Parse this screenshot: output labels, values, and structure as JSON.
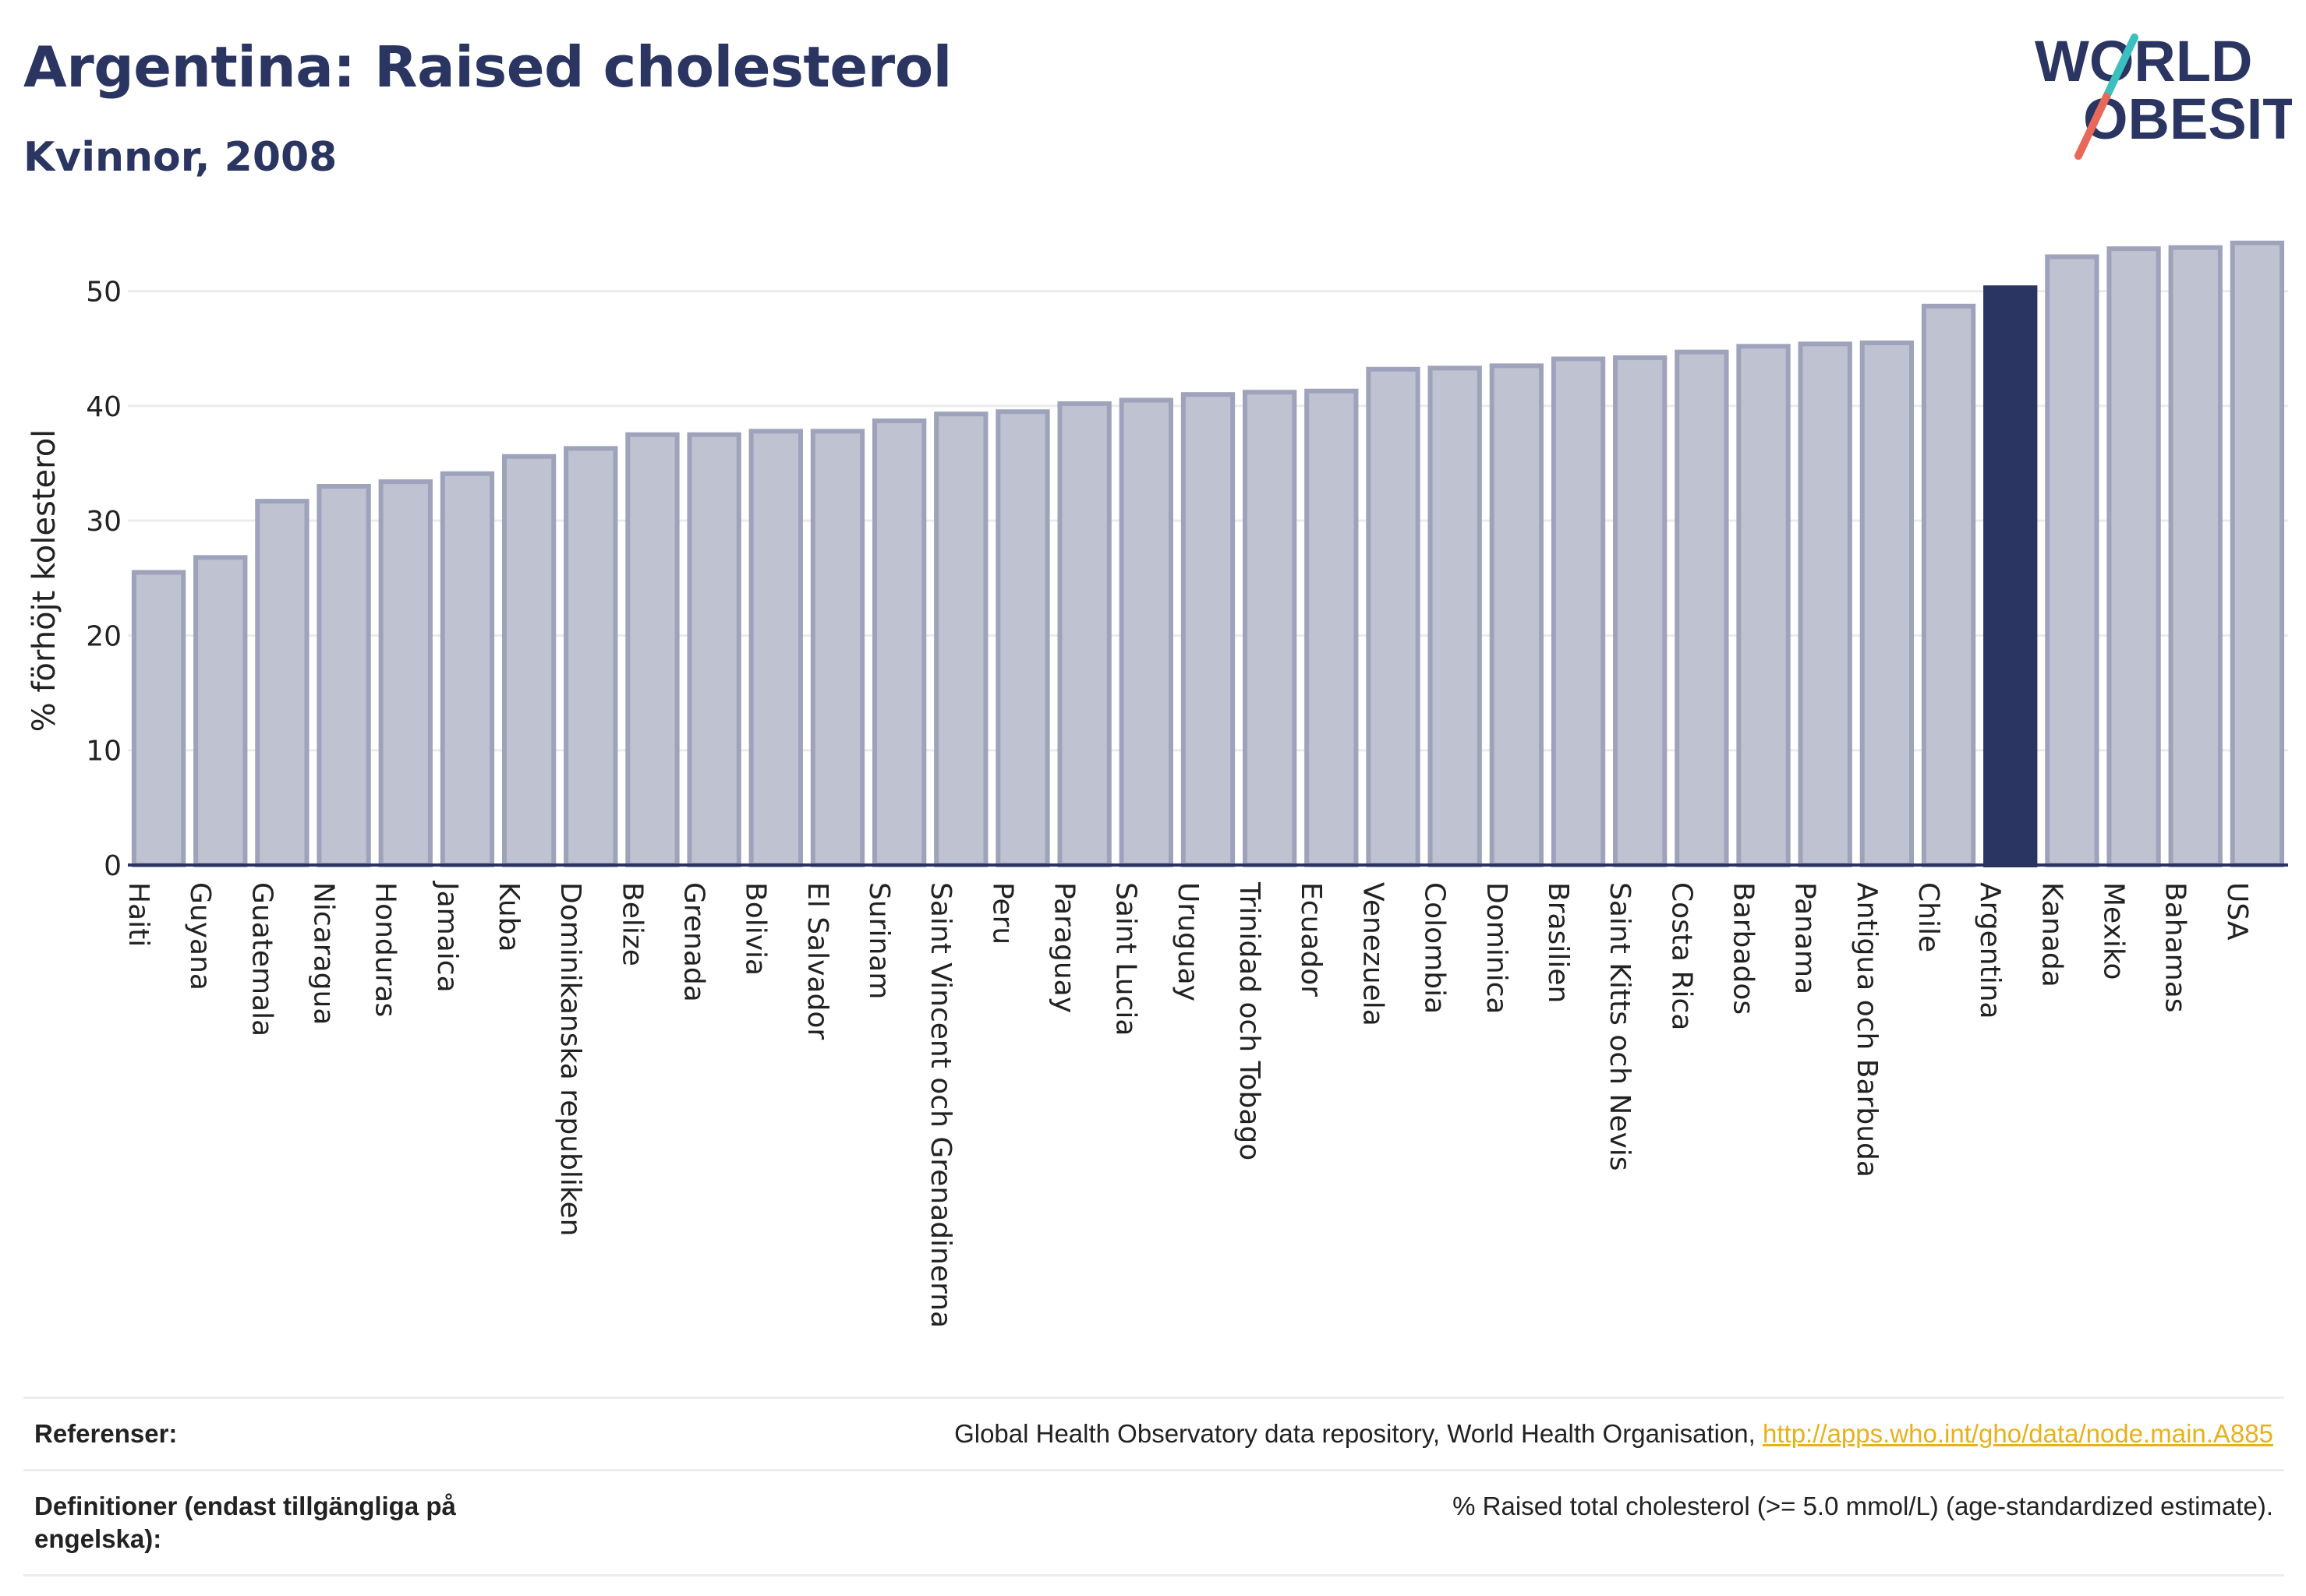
{
  "title": "Argentina: Raised cholesterol",
  "subtitle": "Kvinnor, 2008",
  "logo": {
    "line1": "WORLD",
    "line2": "OBESITY"
  },
  "chart_data": {
    "type": "bar",
    "ylabel": "% förhöjt kolesterol",
    "ylim": [
      0,
      55
    ],
    "yticks": [
      0,
      10,
      20,
      30,
      40,
      50
    ],
    "grid": true,
    "highlight": "Argentina",
    "categories": [
      "Haiti",
      "Guyana",
      "Guatemala",
      "Nicaragua",
      "Honduras",
      "Jamaica",
      "Kuba",
      "Dominikanska republiken",
      "Belize",
      "Grenada",
      "Bolivia",
      "El Salvador",
      "Surinam",
      "Saint Vincent och Grenadinerna",
      "Peru",
      "Paraguay",
      "Saint Lucia",
      "Uruguay",
      "Trinidad och Tobago",
      "Ecuador",
      "Venezuela",
      "Colombia",
      "Dominica",
      "Brasilien",
      "Saint Kitts och Nevis",
      "Costa Rica",
      "Barbados",
      "Panama",
      "Antigua och Barbuda",
      "Chile",
      "Argentina",
      "Kanada",
      "Mexiko",
      "Bahamas",
      "USA"
    ],
    "values": [
      25.5,
      26.8,
      31.7,
      33.0,
      33.4,
      34.1,
      35.6,
      36.3,
      37.5,
      37.5,
      37.8,
      37.8,
      38.7,
      39.3,
      39.5,
      40.2,
      40.5,
      41.0,
      41.2,
      41.3,
      43.2,
      43.3,
      43.5,
      44.1,
      44.2,
      44.7,
      45.2,
      45.4,
      45.5,
      48.7,
      50.3,
      53.0,
      53.7,
      53.8,
      54.2
    ],
    "colors": {
      "bar": "#bfc2d0",
      "bar_edge": "#9ea3bb",
      "highlight": "#2b3562",
      "axis": "#2b3361",
      "grid": "#ebebeb"
    }
  },
  "references": {
    "ref_label": "Referenser:",
    "ref_text": "Global Health Observatory data repository, World Health Organisation, ",
    "ref_link": "http://apps.who.int/gho/data/node.main.A885",
    "def_label": "Definitioner (endast tillgängliga på engelska):",
    "def_text": "% Raised total cholesterol (>= 5.0 mmol/L) (age-standardized estimate)."
  }
}
